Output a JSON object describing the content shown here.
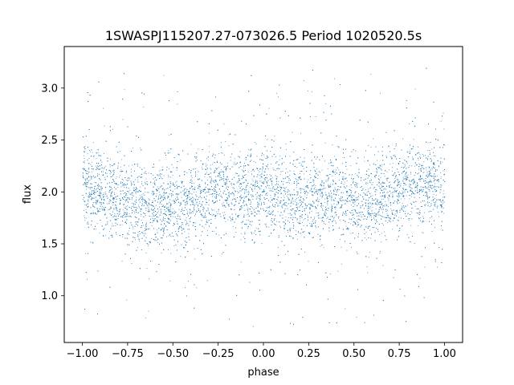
{
  "chart_data": {
    "type": "scatter",
    "title": "1SWASPJ115207.27-073026.5 Period 1020520.5s",
    "xlabel": "phase",
    "ylabel": "flux",
    "xlim": [
      -1.1,
      1.1
    ],
    "ylim": [
      0.55,
      3.4
    ],
    "xticks": [
      -1.0,
      -0.75,
      -0.5,
      -0.25,
      0.0,
      0.25,
      0.5,
      0.75,
      1.0
    ],
    "xtick_labels": [
      "−1.00",
      "−0.75",
      "−0.50",
      "−0.25",
      "0.00",
      "0.25",
      "0.50",
      "0.75",
      "1.00"
    ],
    "yticks": [
      1.0,
      1.5,
      2.0,
      2.5,
      3.0
    ],
    "ytick_labels": [
      "1.0",
      "1.5",
      "2.0",
      "2.5",
      "3.0"
    ],
    "grid": false,
    "marker_color": "#1f77b4",
    "series": [
      {
        "x_range": [
          -1.0,
          1.0
        ],
        "mean_flux_profile": {
          "phase": [
            -1.0,
            -0.9,
            -0.8,
            -0.7,
            -0.6,
            -0.5,
            -0.45,
            -0.4,
            -0.3,
            -0.2,
            -0.1,
            0.0,
            0.1,
            0.2,
            0.3,
            0.4,
            0.5,
            0.55,
            0.6,
            0.7,
            0.8,
            0.9,
            1.0
          ],
          "flux": [
            2.05,
            2.0,
            1.95,
            1.88,
            1.87,
            1.9,
            1.85,
            1.92,
            2.0,
            2.02,
            2.0,
            1.97,
            1.95,
            1.93,
            2.0,
            2.0,
            1.9,
            1.82,
            1.9,
            2.0,
            2.05,
            2.07,
            2.05
          ]
        },
        "core_spread": 0.2,
        "outlier_range": [
          0.7,
          3.2
        ]
      }
    ]
  }
}
